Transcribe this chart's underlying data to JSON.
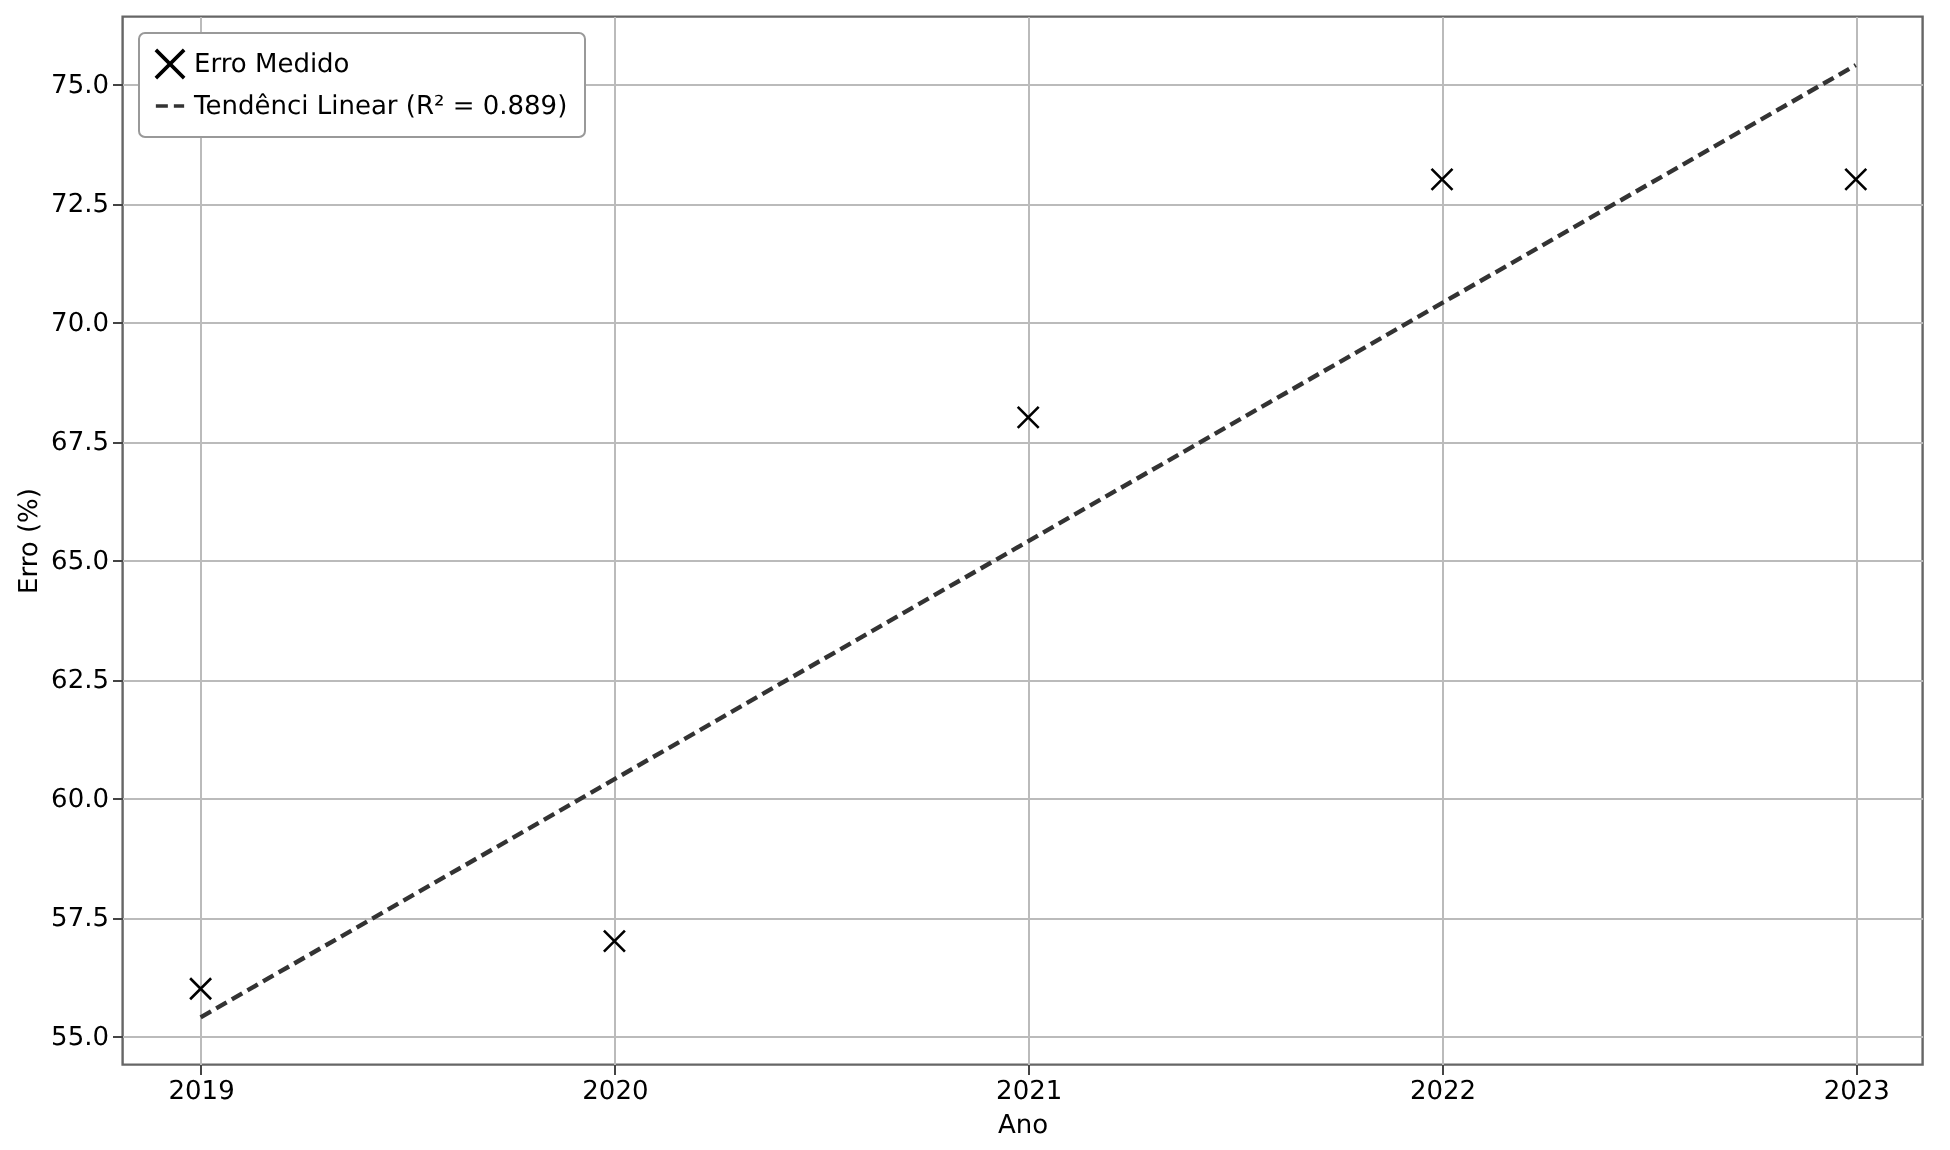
{
  "chart_data": {
    "type": "scatter",
    "xlabel": "Ano",
    "ylabel": "Erro (%)",
    "xlim": [
      2018.81,
      2023.16
    ],
    "ylim": [
      54.42,
      76.43
    ],
    "xticks": [
      2019,
      2020,
      2021,
      2022,
      2023
    ],
    "yticks": [
      {
        "value": 55,
        "label": "55.0"
      },
      {
        "value": 57.5,
        "label": "57.5"
      },
      {
        "value": 60,
        "label": "60.0"
      },
      {
        "value": 62.5,
        "label": "62.5"
      },
      {
        "value": 65,
        "label": "65.0"
      },
      {
        "value": 67.5,
        "label": "67.5"
      },
      {
        "value": 70,
        "label": "70.0"
      },
      {
        "value": 72.5,
        "label": "72.5"
      },
      {
        "value": 75,
        "label": "75.0"
      }
    ],
    "grid": true,
    "legend": "top left",
    "series": [
      {
        "name": "Erro Medido",
        "color": "#000000",
        "marker": "cross",
        "x": [
          2019,
          2020,
          2021,
          2022,
          2023
        ],
        "values": [
          56,
          57,
          68,
          73,
          73
        ]
      },
      {
        "name": "Tendênci Linear (R² = 0.889)",
        "type": "line",
        "color": "#333333",
        "line_style": "dashed",
        "x": [
          2019,
          2023
        ],
        "values": [
          55.4,
          75.4
        ]
      }
    ]
  }
}
